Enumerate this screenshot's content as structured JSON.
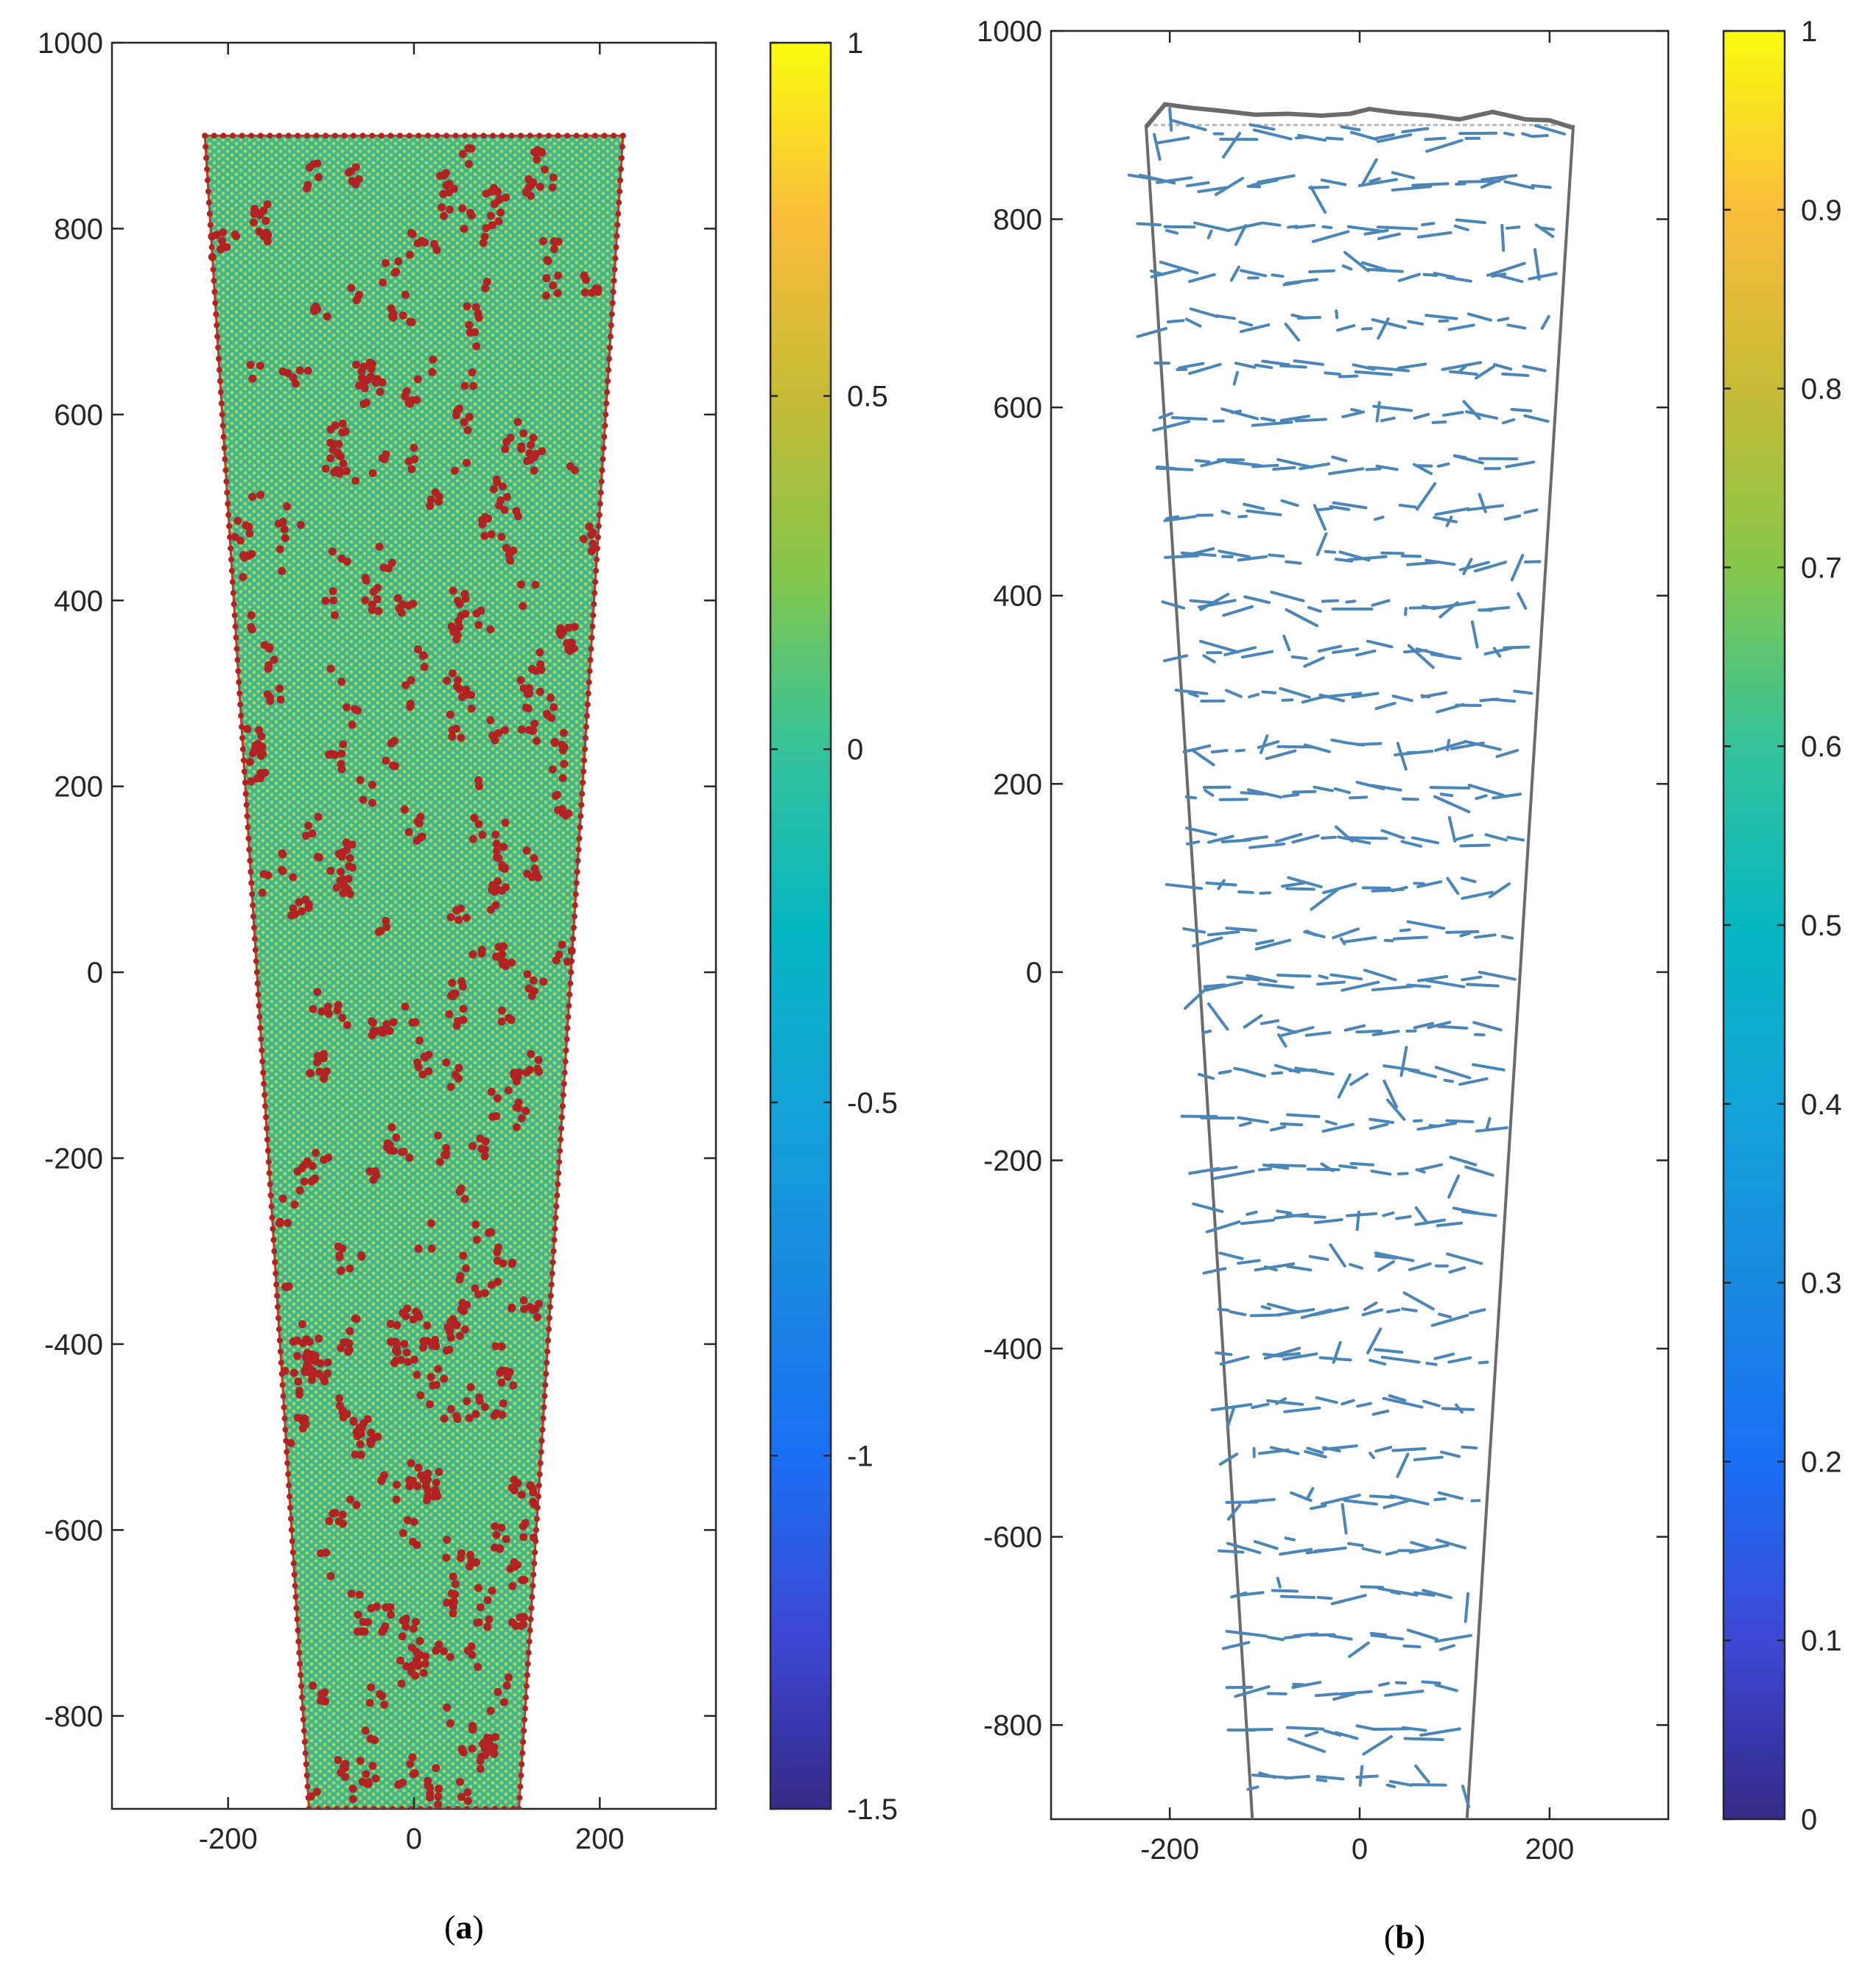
{
  "chart_data": [
    {
      "panel": "(a)",
      "panel_letter": "a",
      "type": "heatmap",
      "title": "",
      "xlabel": "",
      "ylabel": "",
      "xlim": [
        -325,
        325
      ],
      "ylim": [
        -900,
        1000
      ],
      "x_ticks": [
        -200,
        0,
        200
      ],
      "y_ticks": [
        -800,
        -600,
        -400,
        -200,
        0,
        200,
        400,
        600,
        800,
        1000
      ],
      "colorbar": {
        "min": -1.5,
        "max": 1,
        "ticks": [
          -1.5,
          -1,
          -0.5,
          0,
          0.5,
          1
        ],
        "colormap": "parula"
      },
      "domain_outline": {
        "top_y": 900,
        "top_x": [
          -225,
          225
        ],
        "bottom_y": -900,
        "bottom_x": [
          -113,
          113
        ]
      },
      "colors": {
        "lattice": "#52c28a",
        "defect": "#b22222"
      }
    },
    {
      "panel": "(b)",
      "panel_letter": "b",
      "type": "quiver",
      "title": "",
      "xlabel": "",
      "ylabel": "",
      "xlim": [
        -325,
        325
      ],
      "ylim": [
        -900,
        1000
      ],
      "x_ticks": [
        -200,
        0,
        200
      ],
      "y_ticks": [
        -800,
        -600,
        -400,
        -200,
        0,
        200,
        400,
        600,
        800,
        1000
      ],
      "colorbar": {
        "min": 0,
        "max": 1,
        "ticks": [
          0,
          0.1,
          0.2,
          0.3,
          0.4,
          0.5,
          0.6,
          0.7,
          0.8,
          0.9,
          1
        ],
        "colormap": "parula"
      },
      "domain_outline": {
        "top_y": 900,
        "top_x": [
          -225,
          225
        ],
        "bottom_y": -900,
        "bottom_x": [
          -113,
          113
        ]
      },
      "top_surface": {
        "x": [
          -225,
          -205,
          -175,
          -145,
          -110,
          -75,
          -40,
          -10,
          10,
          40,
          75,
          105,
          140,
          175,
          200,
          225
        ],
        "y": [
          898,
          922,
          918,
          915,
          911,
          912,
          910,
          912,
          917,
          913,
          910,
          906,
          914,
          906,
          905,
          897
        ]
      },
      "colors": {
        "arrow": "#4a86b8",
        "outline": "#6b6b6b"
      }
    }
  ]
}
